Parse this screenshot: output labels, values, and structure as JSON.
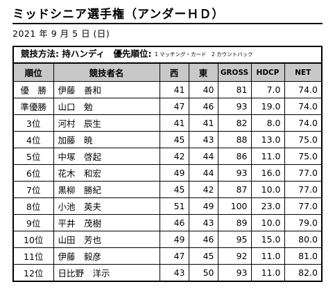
{
  "title": "ミッドシニア選手権（アンダーＨＤ）",
  "date": "2021 年 9 月 5 日 (日)",
  "method": {
    "label": "競技方法: 持ハンディ　優先順位:",
    "note": "1 マッチング・カード　2 カウントバック"
  },
  "table": {
    "headers": {
      "rank": "順位",
      "name": "競技者名",
      "west": "西",
      "east": "東",
      "gross": "GROSS",
      "hdcp": "HDCP",
      "net": "NET"
    },
    "rows": [
      {
        "rank": "優　勝",
        "name": "伊藤　善和",
        "west": "41",
        "east": "40",
        "gross": "81",
        "hdcp": "7.0",
        "net": "74.0"
      },
      {
        "rank": "準優勝",
        "name": "山口　勉",
        "west": "47",
        "east": "46",
        "gross": "93",
        "hdcp": "19.0",
        "net": "74.0"
      },
      {
        "rank": "3位",
        "name": "河村　辰生",
        "west": "41",
        "east": "41",
        "gross": "82",
        "hdcp": "8.0",
        "net": "74.0"
      },
      {
        "rank": "4位",
        "name": "加藤　暁",
        "west": "45",
        "east": "43",
        "gross": "88",
        "hdcp": "13.0",
        "net": "75.0"
      },
      {
        "rank": "5位",
        "name": "中塚　啓起",
        "west": "42",
        "east": "44",
        "gross": "86",
        "hdcp": "11.0",
        "net": "75.0"
      },
      {
        "rank": "6位",
        "name": "花木　和宏",
        "west": "49",
        "east": "44",
        "gross": "93",
        "hdcp": "16.0",
        "net": "77.0"
      },
      {
        "rank": "7位",
        "name": "黒柳　勝紀",
        "west": "45",
        "east": "42",
        "gross": "87",
        "hdcp": "10.0",
        "net": "77.0"
      },
      {
        "rank": "8位",
        "name": "小池　英夫",
        "west": "51",
        "east": "49",
        "gross": "100",
        "hdcp": "23.0",
        "net": "77.0"
      },
      {
        "rank": "9位",
        "name": "平井　茂樹",
        "west": "46",
        "east": "43",
        "gross": "89",
        "hdcp": "10.0",
        "net": "79.0"
      },
      {
        "rank": "10位",
        "name": "山田　芳也",
        "west": "49",
        "east": "46",
        "gross": "95",
        "hdcp": "15.0",
        "net": "80.0"
      },
      {
        "rank": "11位",
        "name": "伊藤　毅彦",
        "west": "47",
        "east": "45",
        "gross": "92",
        "hdcp": "11.0",
        "net": "81.0"
      },
      {
        "rank": "12位",
        "name": "日比野　洋示",
        "west": "43",
        "east": "50",
        "gross": "93",
        "hdcp": "11.0",
        "net": "82.0"
      }
    ]
  }
}
